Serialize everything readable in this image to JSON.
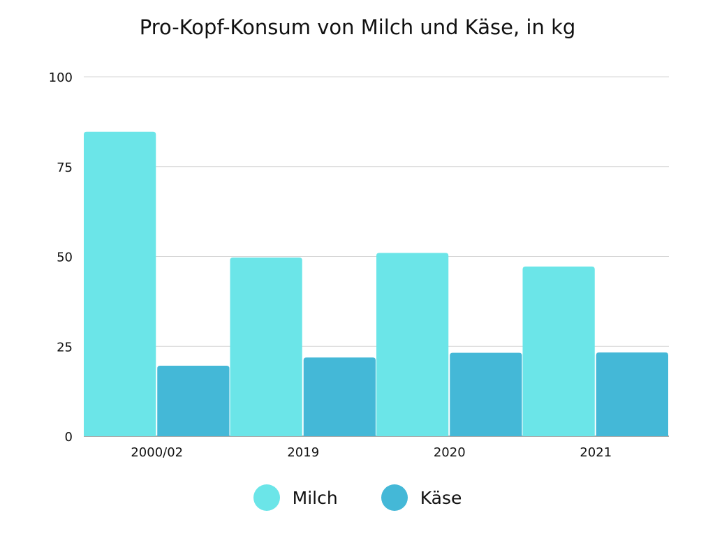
{
  "chart_data": {
    "type": "bar",
    "title": "Pro-Kopf-Konsum von Milch und Käse, in kg",
    "categories": [
      "2000/02",
      "2019",
      "2020",
      "2021"
    ],
    "series": [
      {
        "name": "Milch",
        "values": [
          84.7,
          49.7,
          51.0,
          47.2
        ],
        "color": "#6be5e8"
      },
      {
        "name": "Käse",
        "values": [
          19.6,
          21.9,
          23.2,
          23.3
        ],
        "color": "#44b8d7"
      }
    ],
    "ylim": [
      0,
      100
    ],
    "yticks": [
      "0",
      "25",
      "50",
      "75",
      "100"
    ],
    "grid": true,
    "legend": "bottom",
    "xlabel": "",
    "ylabel": ""
  }
}
